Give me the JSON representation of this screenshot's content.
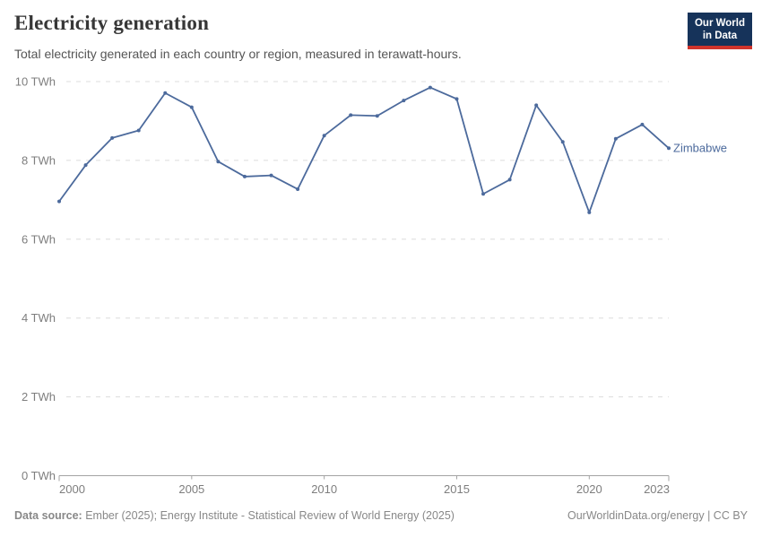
{
  "header": {
    "subtitle": "Total electricity generated in each country or region, measured in terawatt-hours.",
    "logo": {
      "line1": "Our World",
      "line2": "in Data"
    }
  },
  "chart_data": {
    "type": "line",
    "title": "Electricity generation",
    "unit": "TWh",
    "x": [
      2000,
      2001,
      2002,
      2003,
      2004,
      2005,
      2006,
      2007,
      2008,
      2009,
      2010,
      2011,
      2012,
      2013,
      2014,
      2015,
      2016,
      2017,
      2018,
      2019,
      2020,
      2021,
      2022,
      2023
    ],
    "series": [
      {
        "name": "Zimbabwe",
        "color": "#4C6A9C",
        "values": [
          6.96,
          7.88,
          8.57,
          8.76,
          9.71,
          9.35,
          7.97,
          7.59,
          7.62,
          7.27,
          8.63,
          9.15,
          9.13,
          9.52,
          9.85,
          9.56,
          7.15,
          7.51,
          9.4,
          8.47,
          6.68,
          8.55,
          8.91,
          8.31
        ]
      }
    ],
    "ylim": [
      0,
      10
    ],
    "yticks": [
      0,
      2,
      4,
      6,
      8,
      10
    ],
    "ytick_suffix": " TWh",
    "xticks": [
      2000,
      2005,
      2010,
      2015,
      2020,
      2023
    ],
    "grid": "horizontal-dashed",
    "legend_position": "end-of-line"
  },
  "footer": {
    "source_label": "Data source:",
    "source_text": "Ember (2025); Energy Institute - Statistical Review of World Energy (2025)",
    "right_text": "OurWorldinData.org/energy | CC BY"
  },
  "colors": {
    "line": "#4C6A9C",
    "grid": "#dcdcdc",
    "axis": "#a3a3a3",
    "tick_label": "#7e7e7e",
    "logo_bg": "#16335a",
    "logo_bar": "#d0342c"
  }
}
